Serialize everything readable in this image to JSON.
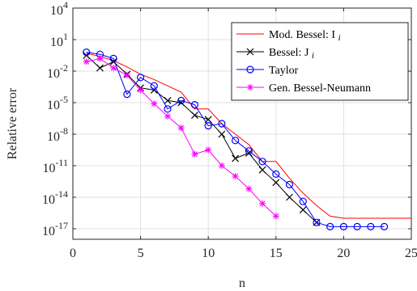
{
  "chart_data": {
    "type": "line",
    "title": "",
    "xlabel": "n",
    "ylabel": "Relative error",
    "xlim": [
      0,
      25
    ],
    "ylim_log10": [
      -18,
      4
    ],
    "yscale": "log",
    "grid": true,
    "legend_position": "top-right",
    "x_ticks": [
      0,
      5,
      10,
      15,
      20,
      25
    ],
    "x_tick_labels": [
      "0",
      "5",
      "10",
      "15",
      "20",
      "25"
    ],
    "y_ticks_log10": [
      -17,
      -14,
      -11,
      -8,
      -5,
      -2,
      1,
      4
    ],
    "y_tick_bases": [
      "10",
      "10",
      "10",
      "10",
      "10",
      "10",
      "10",
      "10"
    ],
    "y_tick_exponents": [
      "-17",
      "-14",
      "-11",
      "-8",
      "-5",
      "-2",
      "1",
      "4"
    ],
    "series": [
      {
        "name": "Mod. Bessel: I",
        "name_subscript": "i",
        "color": "#ff0000",
        "marker": "none",
        "x": [
          1,
          2,
          3,
          4,
          5,
          6,
          7,
          8,
          9,
          10,
          11,
          12,
          13,
          14,
          15,
          16,
          17,
          18,
          19,
          20,
          21,
          22,
          23,
          24,
          25
        ],
        "log10_y": [
          -0.3,
          -0.6,
          -1.0,
          -1.6,
          -2.3,
          -2.8,
          -3.4,
          -4.0,
          -5.6,
          -5.6,
          -7.0,
          -8.0,
          -9.0,
          -10.6,
          -10.6,
          -12.2,
          -13.6,
          -14.8,
          -15.8,
          -16.0,
          -16.0,
          -16.0,
          -16.0,
          -16.0,
          -16.0
        ]
      },
      {
        "name": "Bessel: J",
        "name_subscript": "i",
        "color": "#000000",
        "marker": "x",
        "x": [
          1,
          2,
          3,
          4,
          5,
          6,
          7,
          8,
          9,
          10,
          11,
          12,
          13,
          14,
          15,
          16,
          17,
          18
        ],
        "log10_y": [
          -0.5,
          -1.7,
          -1.1,
          -2.3,
          -3.6,
          -3.8,
          -4.8,
          -5.0,
          -6.2,
          -6.6,
          -8.0,
          -10.3,
          -9.8,
          -11.4,
          -12.6,
          -14.0,
          -15.2,
          -16.4
        ]
      },
      {
        "name": "Taylor",
        "name_subscript": "",
        "color": "#0000ff",
        "marker": "o",
        "x": [
          1,
          2,
          3,
          4,
          5,
          6,
          7,
          8,
          9,
          10,
          11,
          12,
          13,
          14,
          15,
          16,
          17,
          18,
          19,
          20,
          21,
          22,
          23
        ],
        "log10_y": [
          -0.2,
          -0.4,
          -0.8,
          -4.2,
          -2.6,
          -3.4,
          -5.6,
          -4.8,
          -5.2,
          -7.2,
          -7.0,
          -8.6,
          -9.6,
          -10.6,
          -11.8,
          -12.8,
          -14.4,
          -16.4,
          -16.8,
          -16.8,
          -16.8,
          -16.8,
          -16.8
        ]
      },
      {
        "name": "Gen. Bessel-Neumann",
        "name_subscript": "",
        "color": "#ff00ff",
        "marker": "*",
        "x": [
          1,
          2,
          3,
          4,
          5,
          6,
          7,
          8,
          9,
          10,
          11,
          12,
          13,
          14,
          15
        ],
        "log10_y": [
          -1.1,
          -0.8,
          -1.7,
          -2.4,
          -3.8,
          -5.1,
          -6.3,
          -7.4,
          -9.9,
          -9.5,
          -11.0,
          -12.0,
          -13.2,
          -14.6,
          -15.8
        ]
      }
    ]
  }
}
